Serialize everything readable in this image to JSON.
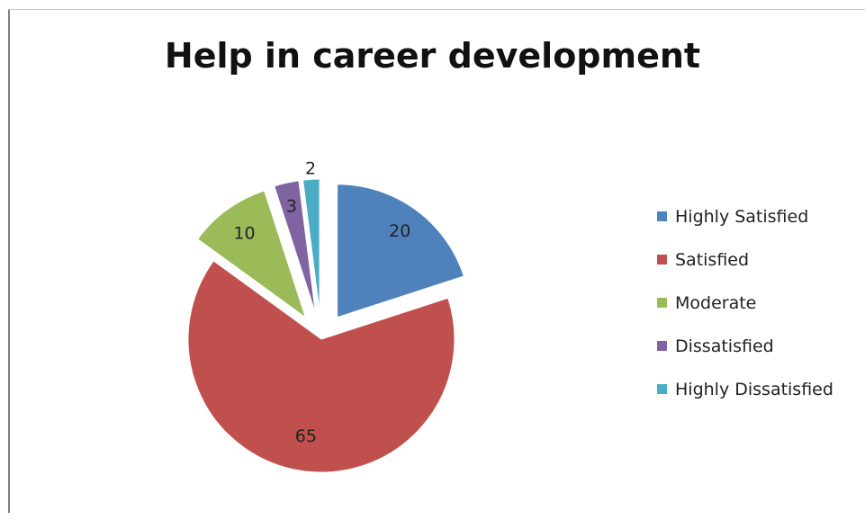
{
  "chart_data": {
    "type": "pie",
    "title": "Help in career development",
    "categories": [
      "Highly Satisfied",
      "Satisfied",
      "Moderate",
      "Dissatisfied",
      "Highly Dissatisfied"
    ],
    "values": [
      20,
      65,
      10,
      3,
      2
    ],
    "colors": [
      "#4f81bd",
      "#c0504d",
      "#9bbb59",
      "#8064a2",
      "#4bacc6"
    ],
    "exploded": true,
    "legend": "right",
    "data_labels": [
      "20",
      "65",
      "10",
      "3",
      "2"
    ]
  }
}
